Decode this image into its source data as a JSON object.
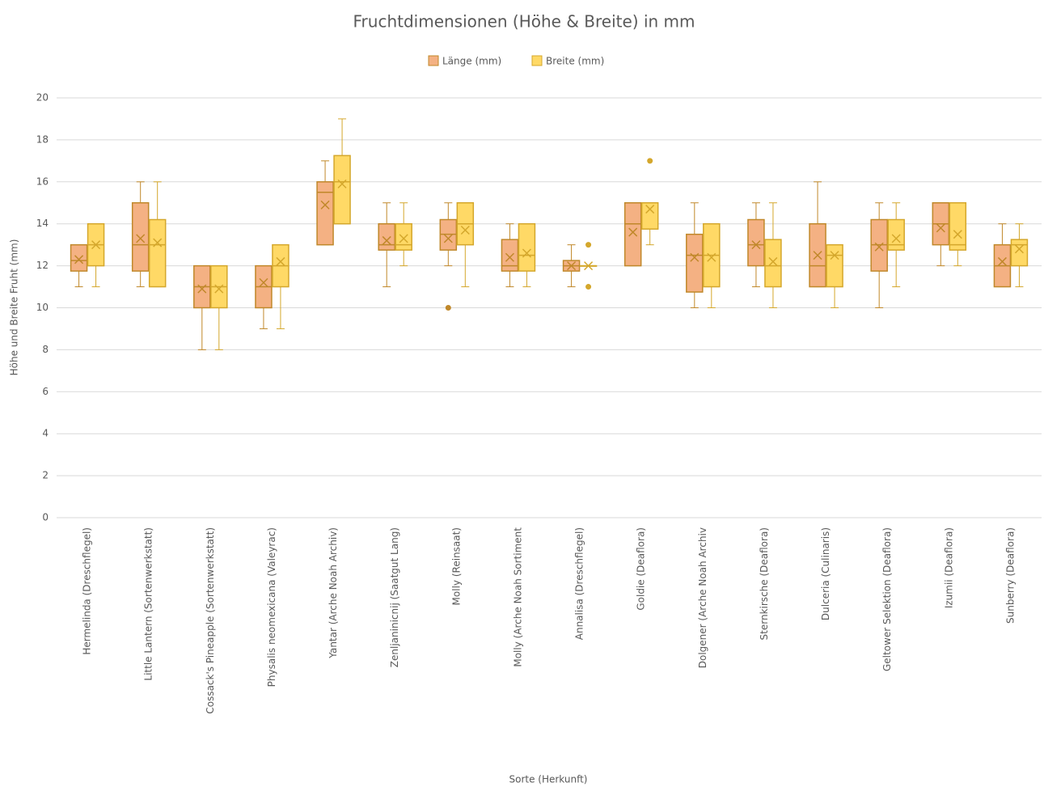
{
  "chart_data": {
    "type": "boxplot",
    "title": "Fruchtdimensionen (Höhe & Breite) in mm",
    "x_label": "Sorte (Herkunft)",
    "y_label": "Höhe und Breite Fruht (mm)",
    "legend": "top",
    "grid": true,
    "ylim": [
      0,
      20
    ],
    "yticks": [
      0,
      2,
      4,
      6,
      8,
      10,
      12,
      14,
      16,
      18,
      20
    ],
    "categories": [
      "Hermelinda (Dreschflegel)",
      "Little Lantern (Sortenwerkstatt)",
      "Cossack's Pineapple (Sortenwerkstatt)",
      "Physalis neomexicana (Valeyrac)",
      "Yantar (Arche Noah Archiv)",
      "Zenljaninicnij (Saatgut Lang)",
      "Molly (Reinsaat)",
      "Molly (Arche Noah Sortiment",
      "Annalisa (Dreschflegel)",
      "Goldie (Deaflora)",
      "Dolgener (Arche Noah Archiv",
      "Sternkirsche (Deaflora)",
      "Dulceria (Culinaris)",
      "Geltower Selektion (Deaflora)",
      "Izumii (Deaflora)",
      "Sunberry (Deaflora)"
    ],
    "series": [
      {
        "name": "Länge (mm)",
        "color": "#f4b183",
        "stroke": "#c0882a",
        "min": [
          11,
          11,
          8,
          9,
          13,
          11,
          12,
          11,
          11,
          12,
          10,
          11,
          11,
          10,
          12,
          11
        ],
        "q1": [
          11.75,
          11.75,
          10,
          10,
          13,
          12.75,
          12.75,
          11.75,
          11.75,
          12,
          10.75,
          12,
          11,
          11.75,
          13,
          11
        ],
        "median": [
          12.25,
          13,
          11,
          11,
          15.5,
          13,
          13.5,
          12,
          12,
          14,
          12.5,
          13,
          12,
          13,
          14,
          12
        ],
        "q3": [
          13,
          15,
          12,
          12,
          16,
          14,
          14.2,
          13.25,
          12.25,
          15,
          13.5,
          14.2,
          14,
          14.2,
          15,
          13
        ],
        "max": [
          13,
          16,
          12,
          12,
          17,
          15,
          15,
          14,
          13,
          15,
          15,
          15,
          16,
          15,
          15,
          14
        ],
        "mean": [
          12.3,
          13.3,
          10.9,
          11.2,
          14.9,
          13.2,
          13.3,
          12.4,
          12,
          13.6,
          12.4,
          13,
          12.5,
          12.9,
          13.8,
          12.2
        ],
        "outliers": [
          [],
          [],
          [],
          [],
          [],
          [],
          [
            10
          ],
          [],
          [],
          [],
          [],
          [],
          [],
          [],
          [],
          []
        ]
      },
      {
        "name": "Breite (mm)",
        "color": "#ffd966",
        "stroke": "#d4a72c",
        "min": [
          11,
          11,
          8,
          9,
          14,
          12,
          11,
          11,
          12,
          13,
          10,
          10,
          10,
          11,
          12,
          11
        ],
        "q1": [
          12,
          11,
          10,
          11,
          14,
          12.75,
          13,
          11.75,
          12,
          13.75,
          11,
          11,
          11,
          12.75,
          12.75,
          12
        ],
        "median": [
          13,
          13,
          11,
          12,
          16,
          13,
          14,
          12.5,
          12,
          15,
          12.5,
          12,
          12.5,
          13,
          13,
          13
        ],
        "q3": [
          14,
          14.2,
          12,
          13,
          17.25,
          14,
          15,
          14,
          12,
          15,
          14,
          13.25,
          13,
          14.2,
          15,
          13.25
        ],
        "max": [
          14,
          16,
          12,
          13,
          19,
          15,
          15,
          14,
          12,
          15,
          14,
          15,
          13,
          15,
          15,
          14
        ],
        "mean": [
          13,
          13.1,
          10.9,
          12.2,
          15.9,
          13.3,
          13.7,
          12.6,
          12,
          14.7,
          12.4,
          12.2,
          12.5,
          13.3,
          13.5,
          12.8
        ],
        "outliers": [
          [],
          [],
          [],
          [],
          [],
          [],
          [],
          [],
          [
            13,
            11
          ],
          [
            17
          ],
          [],
          [],
          [],
          [],
          [],
          []
        ]
      }
    ]
  }
}
